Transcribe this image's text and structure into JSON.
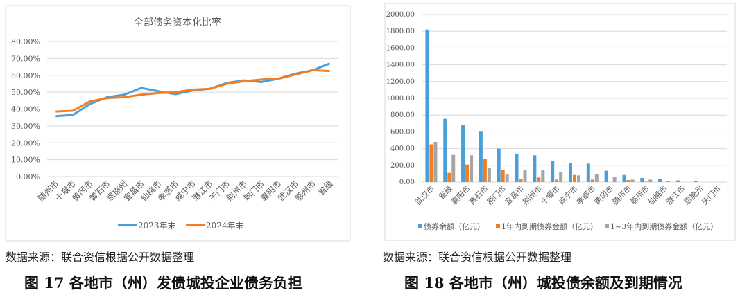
{
  "chart_data": [
    {
      "type": "line",
      "title": "全部债务资本化比率",
      "ylim": [
        0,
        80
      ],
      "yticks": [
        "0.00%",
        "10.00%",
        "20.00%",
        "30.00%",
        "40.00%",
        "50.00%",
        "60.00%",
        "70.00%",
        "80.00%"
      ],
      "categories": [
        "随州市",
        "十堰市",
        "黄冈市",
        "黄石市",
        "恩施州",
        "宜昌市",
        "仙桃市",
        "孝感市",
        "咸宁市",
        "潜江市",
        "天门市",
        "荆州市",
        "荆门市",
        "襄阳市",
        "武汉市",
        "鄂州市",
        "省级"
      ],
      "series": [
        {
          "name": "2023年末",
          "color": "#4a9fdb",
          "values": [
            35.8,
            36.5,
            43,
            47,
            48.5,
            52.5,
            50.5,
            48.8,
            51,
            52,
            55.5,
            57,
            56,
            58,
            61,
            63,
            67
          ]
        },
        {
          "name": "2024年末",
          "color": "#f57c1f",
          "values": [
            38.5,
            39,
            44.5,
            46.5,
            47,
            48.5,
            49.5,
            50,
            51.5,
            52,
            55,
            56.5,
            57.5,
            58,
            60.5,
            63,
            62.5
          ]
        }
      ],
      "legend": "bottom",
      "grid": true
    },
    {
      "type": "bar",
      "ylim": [
        0,
        2000
      ],
      "yticks": [
        "0.00",
        "200.00",
        "400.00",
        "600.00",
        "800.00",
        "1000.00",
        "1200.00",
        "1400.00",
        "1600.00",
        "1800.00",
        "2000.00"
      ],
      "categories": [
        "武汉市",
        "省级",
        "襄阳市",
        "黄石市",
        "荆门市",
        "宜昌市",
        "荆州市",
        "十堰市",
        "咸宁市",
        "孝感市",
        "黄冈市",
        "随州市",
        "鄂州市",
        "仙桃市",
        "潜江市",
        "恩施州",
        "天门市"
      ],
      "series": [
        {
          "name": "债券余额（亿元）",
          "color": "#4a9fdb",
          "values": [
            1820,
            755,
            685,
            610,
            400,
            340,
            320,
            250,
            225,
            220,
            135,
            85,
            50,
            35,
            20,
            15,
            0
          ]
        },
        {
          "name": "1年内到期债券金额（亿元）",
          "color": "#f57c1f",
          "values": [
            450,
            110,
            210,
            280,
            145,
            40,
            55,
            30,
            85,
            30,
            0,
            25,
            5,
            0,
            0,
            0,
            0
          ]
        },
        {
          "name": "1~3年内到期债券金额（亿元）",
          "color": "#a5a5a5",
          "values": [
            480,
            325,
            320,
            165,
            90,
            140,
            140,
            125,
            80,
            90,
            65,
            30,
            30,
            15,
            0,
            0,
            0
          ]
        }
      ],
      "legend": "bottom",
      "grid": true
    }
  ],
  "left_source": "数据来源：联合资信根据公开数据整理",
  "right_source": "数据来源：联合资信根据公开数据整理",
  "left_caption": "图 17  各地市（州）发债城投企业债务负担",
  "right_caption": "图 18  各地市（州）城投债余额及到期情况"
}
